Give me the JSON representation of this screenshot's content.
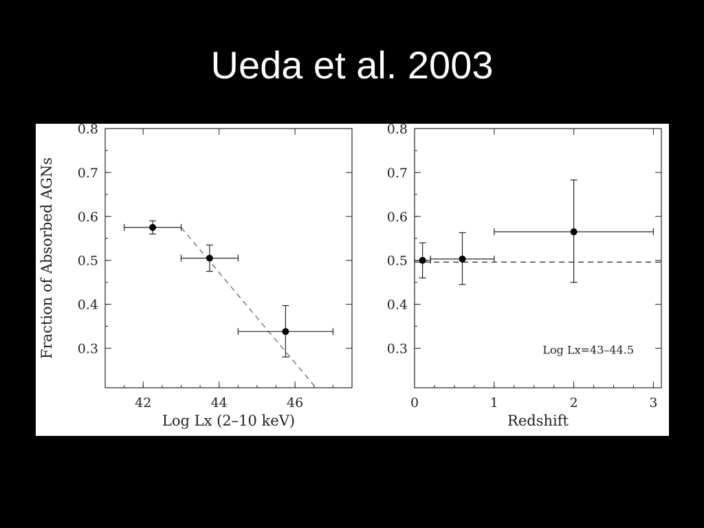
{
  "slide": {
    "title": "Ueda et al. 2003"
  },
  "chart_data": [
    {
      "type": "scatter",
      "title": "",
      "xlabel": "Log Lx (2–10 keV)",
      "ylabel": "Fraction of Absorbed AGNs",
      "xlim": [
        41.0,
        47.5
      ],
      "ylim": [
        0.21,
        0.8
      ],
      "xticks": [
        42,
        44,
        46
      ],
      "yticks": [
        0.3,
        0.4,
        0.5,
        0.6,
        0.7,
        0.8
      ],
      "tick_labels_x": [
        "42",
        "44",
        "46"
      ],
      "tick_labels_y": [
        "0.3",
        "0.4",
        "0.5",
        "0.6",
        "0.7",
        "0.8"
      ],
      "grid": false,
      "points": [
        {
          "x": 42.25,
          "y": 0.575,
          "x_low": 41.5,
          "x_high": 43.0,
          "y_low": 0.56,
          "y_high": 0.59
        },
        {
          "x": 43.75,
          "y": 0.505,
          "x_low": 43.0,
          "x_high": 44.5,
          "y_low": 0.475,
          "y_high": 0.535
        },
        {
          "x": 45.75,
          "y": 0.338,
          "x_low": 44.5,
          "x_high": 47.0,
          "y_low": 0.28,
          "y_high": 0.397
        }
      ],
      "model_line": {
        "style": "dashed",
        "x": [
          43.0,
          46.55
        ],
        "y": [
          0.575,
          0.21
        ]
      },
      "annotation": ""
    },
    {
      "type": "scatter",
      "title": "",
      "xlabel": "Redshift",
      "ylabel": "",
      "xlim": [
        0,
        3.1
      ],
      "ylim": [
        0.21,
        0.8
      ],
      "xticks": [
        0,
        1,
        2,
        3
      ],
      "yticks": [
        0.3,
        0.4,
        0.5,
        0.6,
        0.7,
        0.8
      ],
      "tick_labels_x": [
        "0",
        "1",
        "2",
        "3"
      ],
      "tick_labels_y": [
        "0.3",
        "0.4",
        "0.5",
        "0.6",
        "0.7",
        "0.8"
      ],
      "grid": false,
      "points": [
        {
          "x": 0.1,
          "y": 0.5,
          "x_low": 0.0,
          "x_high": 0.2,
          "y_low": 0.46,
          "y_high": 0.54
        },
        {
          "x": 0.6,
          "y": 0.503,
          "x_low": 0.2,
          "x_high": 1.0,
          "y_low": 0.445,
          "y_high": 0.563
        },
        {
          "x": 2.0,
          "y": 0.565,
          "x_low": 1.0,
          "x_high": 3.0,
          "y_low": 0.45,
          "y_high": 0.683
        }
      ],
      "model_line": {
        "style": "dashed",
        "x": [
          0.0,
          3.1
        ],
        "y": [
          0.496,
          0.496
        ]
      },
      "annotation": "Log Lx=43–44.5"
    }
  ]
}
